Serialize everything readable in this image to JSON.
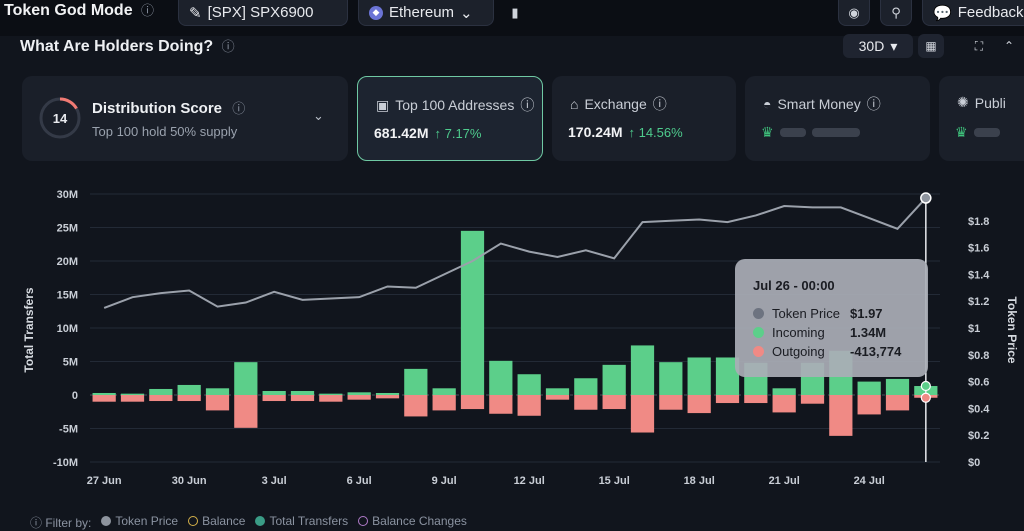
{
  "header": {
    "title": "Token God Mode",
    "token_label": "[SPX] SPX6900",
    "chain_label": "Ethereum",
    "feedback_label": "Feedback"
  },
  "section": {
    "title": "What Are Holders Doing?",
    "period": "30D"
  },
  "cards": {
    "distribution": {
      "score": "14",
      "title": "Distribution Score",
      "subtitle": "Top 100 hold 50% supply"
    },
    "top100": {
      "title": "Top 100 Addresses",
      "value": "681.42M",
      "change": "↑ 7.17%"
    },
    "exchange": {
      "title": "Exchange",
      "value": "170.24M",
      "change": "↑ 14.56%"
    },
    "smart_money": {
      "title": "Smart Money"
    },
    "public": {
      "title": "Publi"
    }
  },
  "tooltip": {
    "date": "Jul 26 - 00:00",
    "rows": [
      {
        "label": "Token Price",
        "value": "$1.97"
      },
      {
        "label": "Incoming",
        "value": "1.34M"
      },
      {
        "label": "Outgoing",
        "value": "-413,774"
      }
    ]
  },
  "legend": {
    "prefix": "Filter by:",
    "items": [
      "Token Price",
      "Balance",
      "Total Transfers",
      "Balance Changes"
    ]
  },
  "colors": {
    "incoming": "#5ccf8a",
    "outgoing": "#f08a85",
    "price_line": "#9ba1ab",
    "accent": "#6fc9a3"
  },
  "chart_data": {
    "type": "bar",
    "title": "What Are Holders Doing?",
    "ylabel": "Total Transfers",
    "y2label": "Token Price",
    "ylim": [
      -10,
      30
    ],
    "y_ticks": [
      -10,
      -5,
      0,
      5,
      10,
      15,
      20,
      25,
      30
    ],
    "y_tick_labels": [
      "-10M",
      "-5M",
      "0",
      "5M",
      "10M",
      "15M",
      "20M",
      "25M",
      "30M"
    ],
    "y2lim": [
      0,
      2
    ],
    "y2_ticks": [
      0,
      0.2,
      0.4,
      0.6,
      0.8,
      1,
      1.2,
      1.4,
      1.6,
      1.8
    ],
    "y2_tick_labels": [
      "$0",
      "$0.2",
      "$0.4",
      "$0.6",
      "$0.8",
      "$1",
      "$1.2",
      "$1.4",
      "$1.6",
      "$1.8"
    ],
    "x_ticks": [
      {
        "label": "27 Jun",
        "index": 0
      },
      {
        "label": "30 Jun",
        "index": 3
      },
      {
        "label": "3 Jul",
        "index": 6
      },
      {
        "label": "6 Jul",
        "index": 9
      },
      {
        "label": "9 Jul",
        "index": 12
      },
      {
        "label": "12 Jul",
        "index": 15
      },
      {
        "label": "15 Jul",
        "index": 18
      },
      {
        "label": "18 Jul",
        "index": 21
      },
      {
        "label": "21 Jul",
        "index": 24
      },
      {
        "label": "24 Jul",
        "index": 27
      }
    ],
    "n_days": 30,
    "series": [
      {
        "name": "Incoming",
        "unit": "M",
        "values": [
          0.3,
          0.2,
          0.9,
          1.5,
          1.0,
          4.9,
          0.6,
          0.6,
          0.2,
          0.4,
          0.3,
          3.9,
          1.0,
          24.5,
          5.1,
          3.1,
          1.0,
          2.5,
          4.5,
          7.4,
          4.9,
          5.6,
          5.6,
          4.8,
          1.0,
          4.8,
          6.6,
          2.0,
          2.4,
          1.34
        ]
      },
      {
        "name": "Outgoing",
        "unit": "M",
        "values": [
          -1.0,
          -1.0,
          -0.9,
          -0.9,
          -2.3,
          -4.9,
          -0.9,
          -0.9,
          -1.0,
          -0.7,
          -0.5,
          -3.2,
          -2.3,
          -2.1,
          -2.8,
          -3.1,
          -0.7,
          -2.2,
          -2.1,
          -5.6,
          -2.2,
          -2.7,
          -1.2,
          -1.2,
          -2.6,
          -1.3,
          -6.1,
          -2.9,
          -2.3,
          -0.41
        ]
      },
      {
        "name": "Token Price",
        "unit": "USD",
        "values": [
          1.15,
          1.23,
          1.26,
          1.28,
          1.16,
          1.19,
          1.27,
          1.21,
          1.22,
          1.23,
          1.31,
          1.3,
          1.4,
          1.5,
          1.63,
          1.57,
          1.53,
          1.58,
          1.52,
          1.79,
          1.8,
          1.81,
          1.79,
          1.84,
          1.91,
          1.9,
          1.9,
          1.82,
          1.74,
          1.97
        ]
      }
    ],
    "hover_index": 29
  }
}
